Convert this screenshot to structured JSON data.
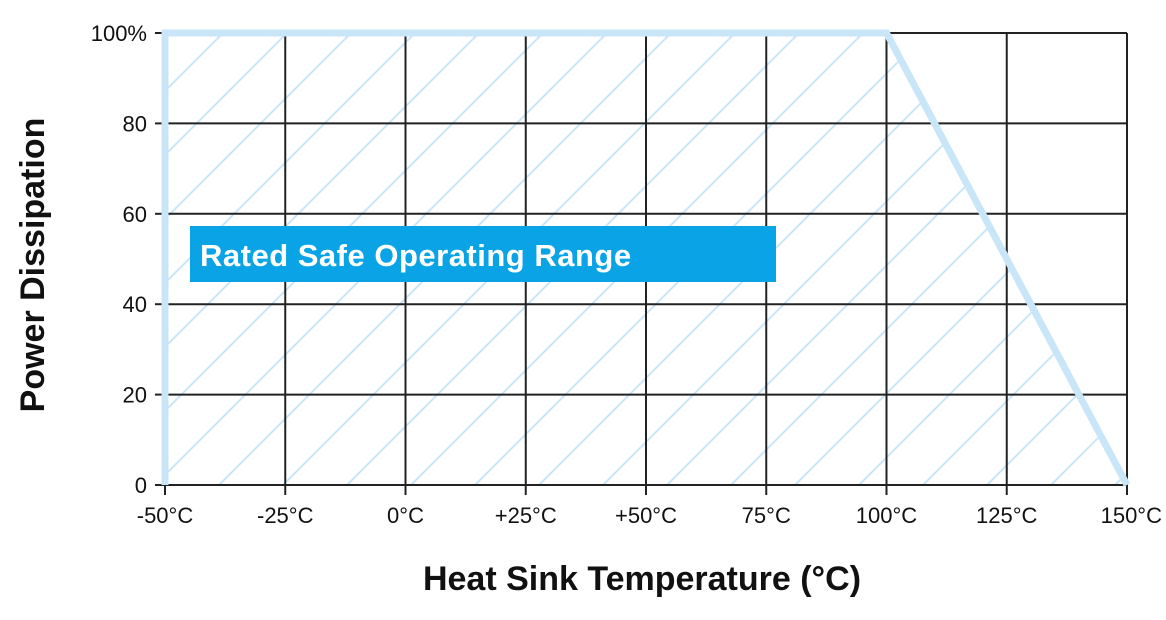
{
  "chart_data": {
    "type": "area",
    "xlabel": "Heat Sink Temperature (°C)",
    "ylabel": "Power Dissipation",
    "x_ticks": [
      {
        "value": -50,
        "label": "-50°C"
      },
      {
        "value": -25,
        "label": "-25°C"
      },
      {
        "value": 0,
        "label": "0°C"
      },
      {
        "value": 25,
        "label": "+25°C"
      },
      {
        "value": 50,
        "label": "+50°C"
      },
      {
        "value": 75,
        "label": "75°C"
      },
      {
        "value": 100,
        "label": "100°C"
      },
      {
        "value": 125,
        "label": "125°C"
      },
      {
        "value": 150,
        "label": "150°C"
      }
    ],
    "y_ticks": [
      {
        "value": 0,
        "label": "0"
      },
      {
        "value": 20,
        "label": "20"
      },
      {
        "value": 40,
        "label": "40"
      },
      {
        "value": 60,
        "label": "60"
      },
      {
        "value": 80,
        "label": "80"
      },
      {
        "value": 100,
        "label": "100%"
      }
    ],
    "xlim": [
      -50,
      150
    ],
    "ylim": [
      0,
      100
    ],
    "grid": true,
    "series": [
      {
        "x": [
          -50,
          100,
          150
        ],
        "y": [
          100,
          100,
          0
        ]
      }
    ],
    "annotation": "Rated Safe Operating Range",
    "colors": {
      "curve": "#c8e6f8",
      "hatch": "#c8e6f8",
      "annotation_bg": "#0aa4e6",
      "grid": "#222222"
    }
  }
}
